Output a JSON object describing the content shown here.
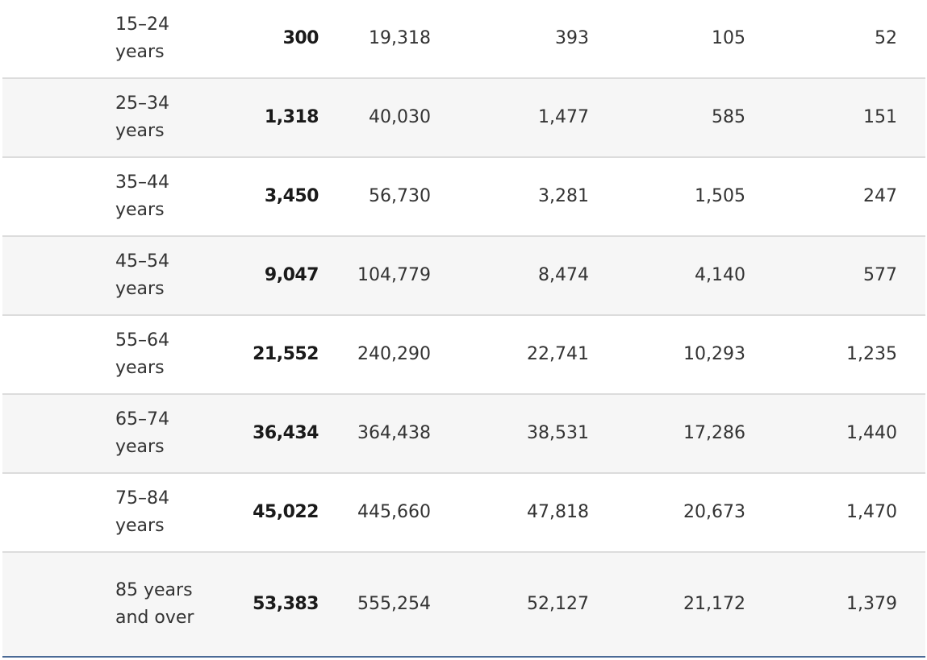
{
  "table": {
    "rows": [
      {
        "label": "15–24 years",
        "total": "300",
        "c2": "19,318",
        "c3": "393",
        "c4": "105",
        "c5": "52"
      },
      {
        "label": "25–34 years",
        "total": "1,318",
        "c2": "40,030",
        "c3": "1,477",
        "c4": "585",
        "c5": "151"
      },
      {
        "label": "35–44 years",
        "total": "3,450",
        "c2": "56,730",
        "c3": "3,281",
        "c4": "1,505",
        "c5": "247"
      },
      {
        "label": "45–54 years",
        "total": "9,047",
        "c2": "104,779",
        "c3": "8,474",
        "c4": "4,140",
        "c5": "577"
      },
      {
        "label": "55–64 years",
        "total": "21,552",
        "c2": "240,290",
        "c3": "22,741",
        "c4": "10,293",
        "c5": "1,235"
      },
      {
        "label": "65–74 years",
        "total": "36,434",
        "c2": "364,438",
        "c3": "38,531",
        "c4": "17,286",
        "c5": "1,440"
      },
      {
        "label": "75–84 years",
        "total": "45,022",
        "c2": "445,660",
        "c3": "47,818",
        "c4": "20,673",
        "c5": "1,470"
      },
      {
        "label": "85 years and over",
        "total": "53,383",
        "c2": "555,254",
        "c3": "52,127",
        "c4": "21,172",
        "c5": "1,379"
      }
    ]
  }
}
